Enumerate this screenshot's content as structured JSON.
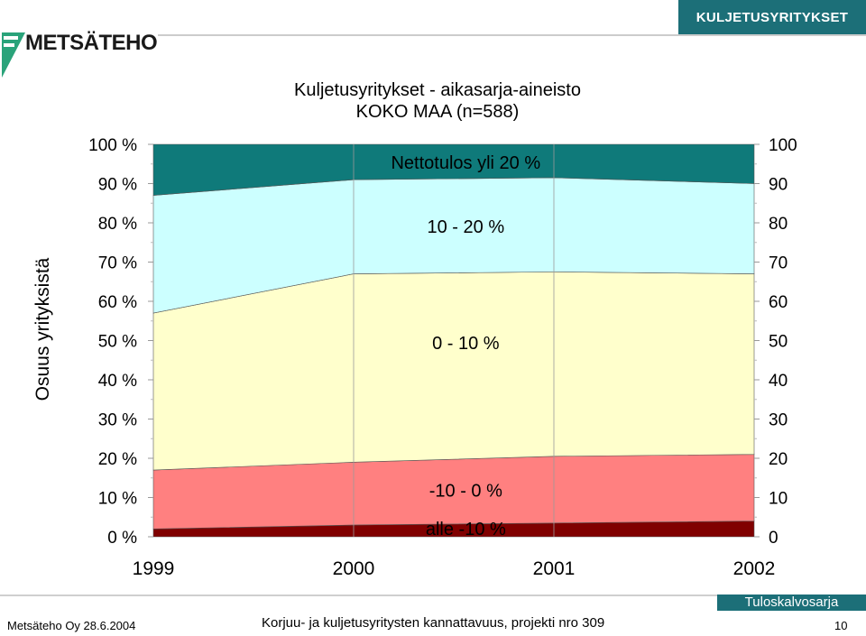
{
  "header": {
    "section_label": "KULJETUSYRITYKSET",
    "logo_text": "METSÄTEHO"
  },
  "chart_data": {
    "type": "area",
    "title": "Kuljetusyritykset - aikasarja-aineisto",
    "subtitle": "KOKO MAA (n=588)",
    "ylabel": "Osuus yrityksistä",
    "xlabel": "",
    "categories": [
      "1999",
      "2000",
      "2001",
      "2002"
    ],
    "ylim": [
      0,
      100
    ],
    "left_tick_labels": [
      "0 %",
      "10 %",
      "20 %",
      "30 %",
      "40 %",
      "50 %",
      "60 %",
      "70 %",
      "80 %",
      "90 %",
      "100 %"
    ],
    "right_tick_labels": [
      "0",
      "10",
      "20",
      "30",
      "40",
      "50",
      "60",
      "70",
      "80",
      "90",
      "100"
    ],
    "stacking": "cumulative_percent",
    "series": [
      {
        "name": "alle -10 %",
        "values": [
          2,
          3,
          3.5,
          4
        ],
        "color": "#800000"
      },
      {
        "name": "-10 - 0 %",
        "values": [
          15,
          16,
          17,
          17
        ],
        "color": "#ff8080"
      },
      {
        "name": "0 - 10 %",
        "values": [
          40,
          48,
          47,
          46
        ],
        "color": "#ffffcc"
      },
      {
        "name": "10 - 20 %",
        "values": [
          30,
          24,
          24,
          23
        ],
        "color": "#ccffff"
      },
      {
        "name": "Nettotulos yli 20 %",
        "values": [
          13,
          9,
          8.5,
          10
        ],
        "color": "#0f7a7a"
      }
    ]
  },
  "footer": {
    "left_text": "Metsäteho Oy 28.6.2004",
    "center_text": "Korjuu- ja kuljetusyritysten kannattavuus, projekti nro 309",
    "tag": "Tuloskalvosarja",
    "page_number": "10"
  }
}
